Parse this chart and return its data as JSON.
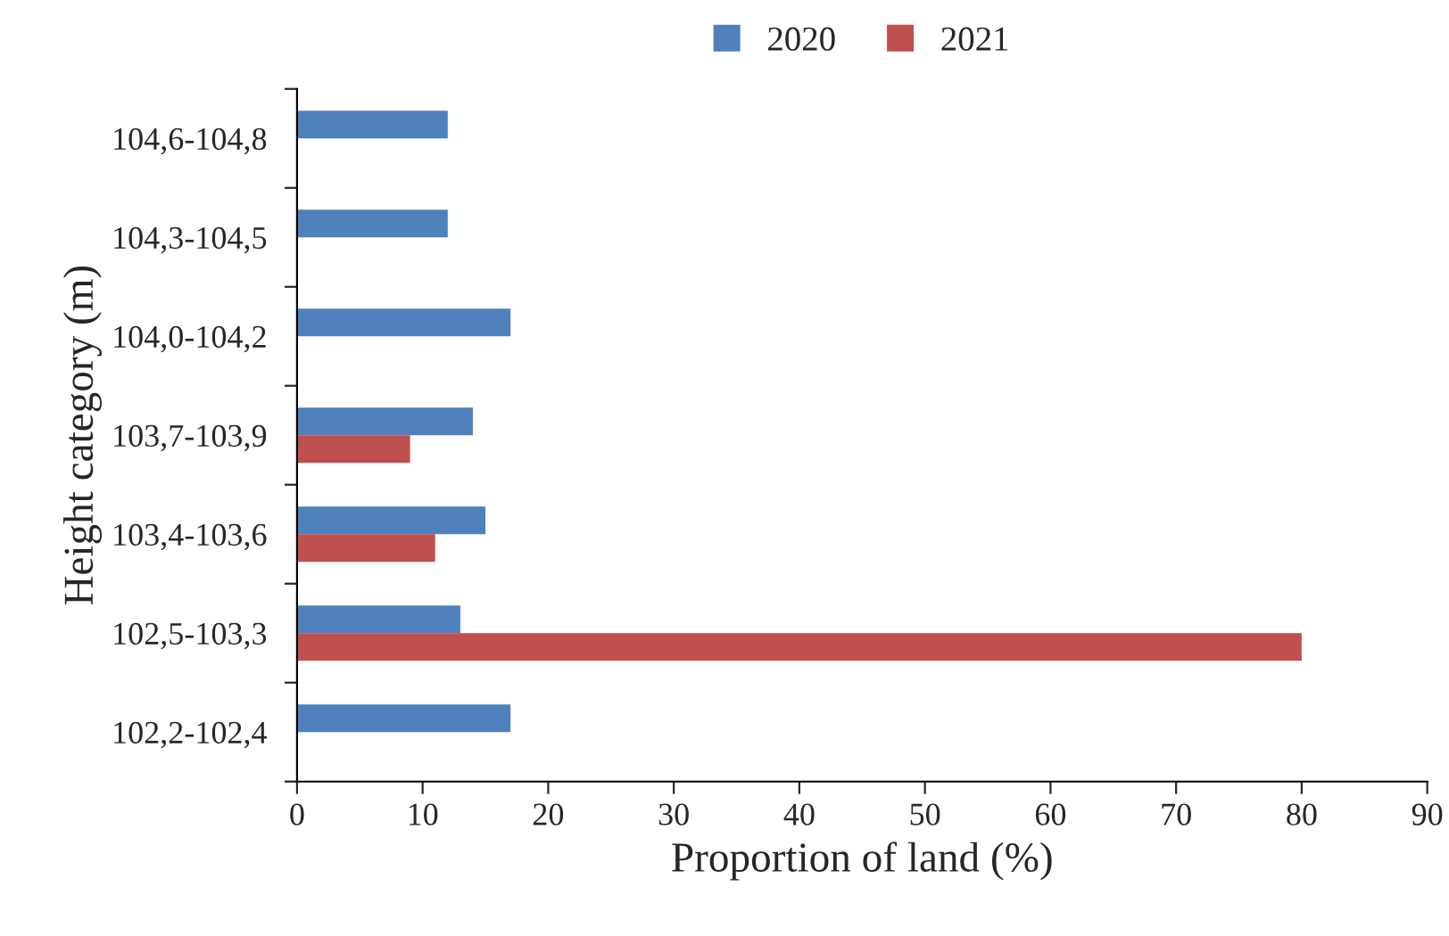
{
  "chart_data": {
    "type": "bar",
    "orientation": "horizontal",
    "xlabel": "Proportion of land (%)",
    "ylabel": "Height category (m)",
    "categories": [
      "104,6-104,8",
      "104,3-104,5",
      "104,0-104,2",
      "103,7-103,9",
      "103,4-103,6",
      "102,5-103,3",
      "102,2-102,4"
    ],
    "series": [
      {
        "name": "2020",
        "color": "#4f81bd",
        "values": [
          12,
          12,
          17,
          14,
          15,
          13,
          17
        ]
      },
      {
        "name": "2021",
        "color": "#c0504d",
        "values": [
          null,
          null,
          null,
          9,
          11,
          80,
          null
        ]
      }
    ],
    "xlim": [
      0,
      90
    ],
    "xticks": [
      0,
      10,
      20,
      30,
      40,
      50,
      60,
      70,
      80,
      90
    ],
    "grid": false,
    "legend": "top"
  }
}
